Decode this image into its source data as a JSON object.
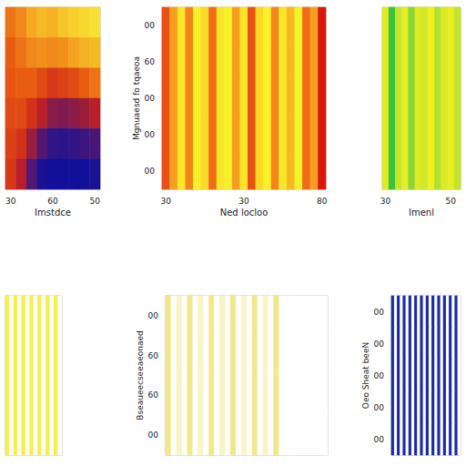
{
  "chart_data": [
    {
      "type": "heatmap",
      "x_label": "Imstdce",
      "tick_labels": "x",
      "categories": [
        "30",
        null,
        null,
        null,
        "60",
        null,
        null,
        null,
        "50"
      ],
      "cells": [
        [
          0.55,
          0.6,
          0.68,
          0.72,
          0.7,
          0.75,
          0.78,
          0.8,
          0.82
        ],
        [
          0.5,
          0.55,
          0.6,
          0.62,
          0.6,
          0.62,
          0.66,
          0.7,
          0.72
        ],
        [
          0.48,
          0.5,
          0.5,
          0.45,
          0.4,
          0.42,
          0.45,
          0.5,
          0.55
        ],
        [
          0.45,
          0.45,
          0.38,
          0.3,
          0.22,
          0.2,
          0.22,
          0.25,
          0.3
        ],
        [
          0.42,
          0.38,
          0.25,
          0.12,
          0.06,
          0.05,
          0.06,
          0.08,
          0.1
        ],
        [
          0.4,
          0.3,
          0.12,
          0.02,
          0,
          0,
          0,
          0,
          0.02
        ]
      ]
    },
    {
      "type": "heatmap",
      "x_label": "Ned locloo",
      "y_label": "Mgnuaesd fo tqaeoa",
      "categories": [
        "30",
        null,
        null,
        null,
        null,
        null,
        null,
        null,
        null,
        null,
        "30",
        null,
        null,
        null,
        null,
        null,
        null,
        null,
        null,
        null,
        "80"
      ],
      "row_labels": [
        "00",
        "60",
        "00",
        "00",
        "00"
      ],
      "values": [
        0.3,
        0.6,
        0.9,
        0.5,
        0.95,
        0.85,
        0.4,
        0.9,
        0.95,
        0.6,
        0.9,
        0.3,
        0.85,
        0.95,
        0.5,
        0.9,
        0.7,
        0.95,
        0.4,
        0.6,
        0.1
      ]
    },
    {
      "type": "heatmap",
      "x_label": "Imenl",
      "tick_labels": "x",
      "categories": [
        "30",
        null,
        null,
        null,
        null,
        null,
        null,
        null,
        null,
        null,
        "50",
        null
      ],
      "values": [
        0.9,
        0.4,
        0.8,
        0.95,
        0.6,
        0.9,
        0.85,
        1,
        0.7,
        0.9,
        0.95,
        0.8
      ]
    },
    {
      "type": "heatmap",
      "tick_labels": false,
      "values": [
        1,
        0,
        1,
        0,
        1,
        0,
        1,
        0,
        1,
        0,
        1,
        0,
        1,
        0
      ]
    },
    {
      "type": "heatmap",
      "y_label": "Bseaueecseeaeonaed",
      "tick_labels": "y",
      "row_labels": [
        "00",
        "60",
        "60",
        "00"
      ],
      "values": [
        0.6,
        0,
        0.3,
        0,
        0.6,
        0,
        0.3,
        0,
        0.6,
        0,
        0.3,
        0,
        0.6,
        0,
        0.3,
        0,
        0.6,
        0,
        0.3,
        0,
        0.6,
        0,
        0,
        0,
        0,
        0,
        0,
        0,
        0,
        0
      ]
    },
    {
      "type": "heatmap",
      "y_label": "Oeo Sheat beeN",
      "tick_labels": "y",
      "row_labels": [
        "00",
        "00",
        "00",
        "00",
        "00"
      ],
      "values": [
        1,
        0.2,
        1,
        0.2,
        1,
        0.2,
        1,
        0.2,
        1,
        0.2,
        1,
        0.2,
        1,
        0.2,
        1,
        0.2,
        1,
        0.2,
        1,
        0.2,
        1,
        0.2,
        1,
        0.2
      ]
    }
  ]
}
